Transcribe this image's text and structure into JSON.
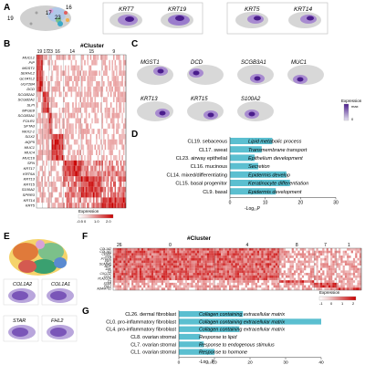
{
  "colors": {
    "bar": "#5bbfd0",
    "umap_grey": "#c8c8c8",
    "feature_low": "#e6e2f2",
    "feature_high": "#4a1d8c",
    "heat_low": "#f2e6e6",
    "heat_high": "#c90000",
    "heat_neg": "#ffffff"
  },
  "panels": {
    "A": {
      "letter": "A",
      "cluster_labels": [
        "19",
        "17",
        "23",
        "16"
      ],
      "feature_pairs": [
        {
          "genes": [
            "KRT7",
            "KRT19"
          ]
        },
        {
          "genes": [
            "KRT5",
            "KRT14"
          ]
        }
      ]
    },
    "B": {
      "letter": "B",
      "title": "#Cluster",
      "clusters": [
        "19",
        "17",
        "23",
        "16",
        "14",
        "15",
        "9"
      ],
      "genes": [
        "MUCL1",
        "PIP",
        "MGST1",
        "SERHL2",
        "GLYATL2",
        "UGT2B4",
        "DCD",
        "SCGB2A2",
        "SCGB2A1",
        "SLPI",
        "MFGE8",
        "SCGB3A1",
        "FOLR1",
        "SFTA3",
        "NKX2-1",
        "SOX2",
        "AQP5",
        "MUC1",
        "MUC4",
        "MUC16",
        "SFN",
        "KRT17",
        "KRT6A",
        "KRT13",
        "KRT15",
        "S100A2",
        "SPRR3",
        "KRT14",
        "KRT5"
      ],
      "legend_title": "Expression",
      "legend_ticks": [
        "-0.5",
        "0",
        "1.0",
        "2.0"
      ]
    },
    "C": {
      "letter": "C",
      "genes_row1": [
        "MGST1",
        "DCD",
        "SCGB3A1",
        "MUC1"
      ],
      "genes_row2": [
        "KRT13",
        "KRT15",
        "S100A2"
      ],
      "legend_title": "Expression",
      "legend_max": "max",
      "legend_min": "0"
    },
    "D": {
      "letter": "D",
      "xlabel": "-Log₁₀P",
      "ticks": [
        "0",
        "10",
        "20",
        "30"
      ],
      "xmax": 30,
      "rows": [
        {
          "cluster": "CL19. sebaceous",
          "term": "Lipid metabolic process",
          "value": 12
        },
        {
          "cluster": "CL17. sweat",
          "term": "Transmembrane transport",
          "value": 9
        },
        {
          "cluster": "CL23. airway epithelial",
          "term": "Epithelium development",
          "value": 7
        },
        {
          "cluster": "CL16. mucinous",
          "term": "Secretion",
          "value": 8
        },
        {
          "cluster": "CL14. mixed/differentiating",
          "term": "Epidermis develop",
          "value": 16
        },
        {
          "cluster": "CL15. basal progenitor",
          "term": "Keratinocyte differentiation",
          "value": 17
        },
        {
          "cluster": "CL9. basal",
          "term": "Epidermis development",
          "value": 13
        }
      ]
    },
    "E": {
      "letter": "E",
      "genes_row1": [
        "COL1A2",
        "COL1A1"
      ],
      "genes_row2": [
        "STAR",
        "FHL2"
      ]
    },
    "F": {
      "letter": "F",
      "title": "#Cluster",
      "clusters": [
        "26",
        "0",
        "4",
        "8",
        "7",
        "1"
      ],
      "genes": [
        "COL1A2",
        "COL1A1",
        "CEMIP",
        "PTN",
        "PTGDS",
        "IGF1",
        "SCARA5",
        "MGP",
        "ZAK",
        "C3",
        "CXCL12",
        "CCL2",
        "PLA2G2A",
        "C3",
        "STAR",
        "FHL2",
        "ADAMTS1"
      ],
      "legend_title": "Expression",
      "legend_ticks": [
        "-1",
        "0",
        "1",
        "2"
      ]
    },
    "G": {
      "letter": "G",
      "xlabel": "-Log₁₀P",
      "ticks": [
        "0",
        "10",
        "20",
        "30",
        "40"
      ],
      "xmax": 40,
      "rows": [
        {
          "cluster": "CL26. dermal fibroblast",
          "term": "Collagen containing extracellular matrix",
          "value": 18
        },
        {
          "cluster": "CL0. pro-inflammatory fibroblast",
          "term": "Collagen containing extracellular matrix",
          "value": 40
        },
        {
          "cluster": "CL4. pro-inflammatory fibroblast",
          "term": "Collagen containing extracellular matrix",
          "value": 17
        },
        {
          "cluster": "CL8. ovarian stromal",
          "term": "Response to lipid",
          "value": 6
        },
        {
          "cluster": "CL7. ovarian stromal",
          "term": "Response to endogenous stimulus",
          "value": 7
        },
        {
          "cluster": "CL1. ovarian stromal",
          "term": "Response to hormone",
          "value": 10
        }
      ]
    }
  }
}
